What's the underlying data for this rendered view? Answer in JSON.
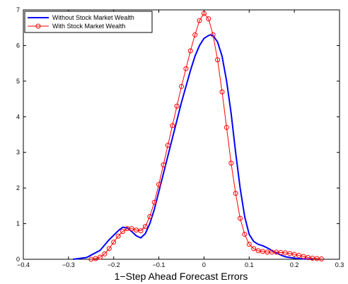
{
  "chart_data": {
    "type": "line",
    "title": "",
    "xlabel": "1−Step Ahead Forecast Errors",
    "ylabel": "",
    "xlim": [
      -0.4,
      0.3
    ],
    "ylim": [
      0,
      7
    ],
    "xticks": [
      "−0.4",
      "−0.3",
      "−0.2",
      "−0.1",
      "0",
      "0.1",
      "0.2",
      "0.3"
    ],
    "yticks": [
      "0",
      "1",
      "2",
      "3",
      "4",
      "5",
      "6",
      "7"
    ],
    "grid": false,
    "legend_position": "top-left",
    "series": [
      {
        "name": "Without Stock Market Wealth",
        "color": "#0000ff",
        "marker": "none",
        "x": [
          -0.29,
          -0.26,
          -0.23,
          -0.21,
          -0.19,
          -0.18,
          -0.17,
          -0.16,
          -0.15,
          -0.14,
          -0.13,
          -0.12,
          -0.11,
          -0.1,
          -0.09,
          -0.08,
          -0.07,
          -0.06,
          -0.05,
          -0.04,
          -0.03,
          -0.02,
          -0.01,
          0.0,
          0.01,
          0.015,
          0.02,
          0.03,
          0.04,
          0.05,
          0.06,
          0.07,
          0.08,
          0.09,
          0.1,
          0.11,
          0.12,
          0.13,
          0.14,
          0.15,
          0.16,
          0.17,
          0.18,
          0.2,
          0.22,
          0.24
        ],
        "y": [
          0.0,
          0.05,
          0.25,
          0.55,
          0.8,
          0.9,
          0.88,
          0.78,
          0.66,
          0.6,
          0.72,
          1.0,
          1.4,
          1.9,
          2.4,
          2.9,
          3.4,
          3.9,
          4.4,
          4.85,
          5.3,
          5.7,
          6.0,
          6.2,
          6.28,
          6.3,
          6.28,
          6.1,
          5.7,
          5.0,
          4.1,
          3.0,
          2.0,
          1.2,
          0.7,
          0.5,
          0.42,
          0.38,
          0.32,
          0.25,
          0.18,
          0.12,
          0.07,
          0.03,
          0.01,
          0.0
        ]
      },
      {
        "name": "With Stock Market Wealth",
        "color": "#ff0000",
        "marker": "circle",
        "x": [
          -0.25,
          -0.24,
          -0.23,
          -0.22,
          -0.21,
          -0.2,
          -0.19,
          -0.18,
          -0.17,
          -0.16,
          -0.15,
          -0.14,
          -0.13,
          -0.12,
          -0.11,
          -0.1,
          -0.09,
          -0.08,
          -0.07,
          -0.06,
          -0.05,
          -0.04,
          -0.03,
          -0.02,
          -0.01,
          0.0,
          0.01,
          0.02,
          0.03,
          0.04,
          0.05,
          0.06,
          0.07,
          0.08,
          0.09,
          0.1,
          0.11,
          0.12,
          0.13,
          0.14,
          0.15,
          0.16,
          0.17,
          0.18,
          0.19,
          0.2,
          0.21,
          0.22,
          0.23,
          0.24,
          0.25,
          0.26
        ],
        "y": [
          0.0,
          0.02,
          0.06,
          0.15,
          0.3,
          0.48,
          0.65,
          0.78,
          0.86,
          0.86,
          0.82,
          0.8,
          0.92,
          1.2,
          1.6,
          2.1,
          2.65,
          3.2,
          3.75,
          4.3,
          4.85,
          5.35,
          5.85,
          6.3,
          6.7,
          6.9,
          6.75,
          6.3,
          5.6,
          4.7,
          3.7,
          2.7,
          1.85,
          1.15,
          0.7,
          0.42,
          0.3,
          0.24,
          0.22,
          0.2,
          0.2,
          0.2,
          0.19,
          0.18,
          0.16,
          0.14,
          0.11,
          0.08,
          0.05,
          0.03,
          0.02,
          0.01
        ]
      }
    ]
  }
}
